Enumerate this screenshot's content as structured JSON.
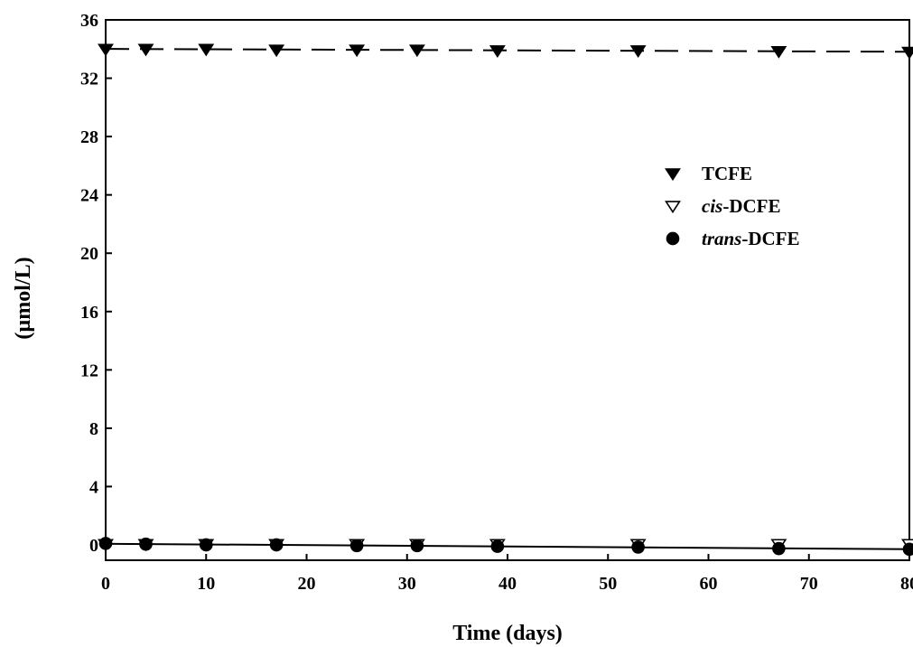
{
  "chart_data": {
    "type": "scatter",
    "title": "",
    "xlabel": "Time (days)",
    "ylabel": "(µmol/L)",
    "xlim": [
      0,
      80
    ],
    "ylim": [
      0,
      36
    ],
    "xticks": [
      0,
      10,
      20,
      30,
      40,
      50,
      60,
      70,
      80
    ],
    "yticks": [
      0,
      4,
      8,
      12,
      16,
      20,
      24,
      28,
      32,
      36
    ],
    "grid": false,
    "legend_position": "right",
    "series": [
      {
        "name": "TCFE",
        "name_plain": "TCFE",
        "name_italic": "",
        "marker": "filled-triangle-down",
        "color": "#000000",
        "x": [
          0,
          4,
          10,
          17,
          25,
          31,
          39,
          53,
          67,
          80
        ],
        "y": [
          34.0,
          34.0,
          34.0,
          33.95,
          33.95,
          33.95,
          33.9,
          33.9,
          33.85,
          33.8
        ],
        "fit_line": "dashed"
      },
      {
        "name": "cis-DCFE",
        "name_italic": "cis",
        "name_plain": "-DCFE",
        "marker": "open-triangle-down",
        "color": "#000000",
        "x": [
          0,
          4,
          10,
          17,
          25,
          31,
          39,
          53,
          67,
          80
        ],
        "y": [
          0.05,
          0.05,
          0.05,
          0.05,
          0.05,
          0.05,
          0.05,
          0.05,
          0.05,
          0.05
        ],
        "fit_line": "none"
      },
      {
        "name": "trans-DCFE",
        "name_italic": "trans",
        "name_plain": "-DCFE",
        "marker": "filled-circle",
        "color": "#000000",
        "x": [
          0,
          4,
          10,
          17,
          25,
          31,
          39,
          53,
          67,
          80
        ],
        "y": [
          0.1,
          0.05,
          0.0,
          0.0,
          -0.05,
          -0.05,
          -0.1,
          -0.15,
          -0.25,
          -0.3
        ],
        "fit_line": "solid"
      }
    ]
  }
}
